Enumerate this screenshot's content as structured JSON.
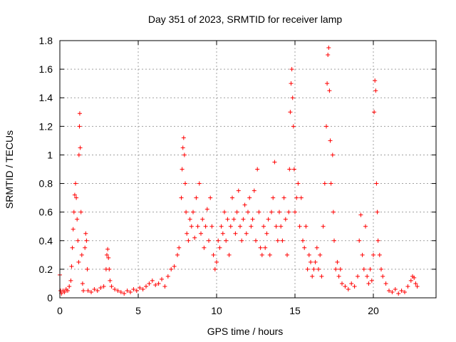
{
  "chart_data": {
    "type": "scatter",
    "title": "Day 351 of 2023, SRMTID for receiver lamp",
    "xlabel": "GPS time / hours",
    "ylabel": "SRMTID / TECUs",
    "xlim": [
      0,
      24
    ],
    "ylim": [
      0,
      1.8
    ],
    "xticks": [
      0,
      5,
      10,
      15,
      20
    ],
    "yticks": [
      0,
      0.2,
      0.4,
      0.6,
      0.8,
      1,
      1.2,
      1.4,
      1.6,
      1.8
    ],
    "ytick_labels": [
      "0",
      "0.2",
      "0.4",
      "0.6",
      "0.8",
      "1",
      "1.2",
      "1.4",
      "1.6",
      "1.8"
    ],
    "grid": true,
    "marker": "+",
    "color": "#ff0000",
    "series": [
      {
        "name": "SRMTID",
        "points": [
          [
            0.0,
            0.16
          ],
          [
            0.05,
            0.05
          ],
          [
            0.1,
            0.03
          ],
          [
            0.2,
            0.05
          ],
          [
            0.3,
            0.04
          ],
          [
            0.4,
            0.06
          ],
          [
            0.5,
            0.05
          ],
          [
            0.6,
            0.08
          ],
          [
            0.7,
            0.12
          ],
          [
            0.75,
            0.22
          ],
          [
            0.8,
            0.35
          ],
          [
            0.85,
            0.48
          ],
          [
            0.9,
            0.6
          ],
          [
            0.95,
            0.72
          ],
          [
            1.0,
            0.8
          ],
          [
            1.05,
            0.7
          ],
          [
            1.1,
            0.55
          ],
          [
            1.15,
            0.4
          ],
          [
            1.2,
            0.25
          ],
          [
            1.22,
            1.0
          ],
          [
            1.25,
            1.2
          ],
          [
            1.27,
            1.29
          ],
          [
            1.3,
            1.05
          ],
          [
            1.35,
            0.6
          ],
          [
            1.4,
            0.3
          ],
          [
            1.45,
            0.1
          ],
          [
            1.5,
            0.05
          ],
          [
            1.6,
            0.35
          ],
          [
            1.65,
            0.45
          ],
          [
            1.7,
            0.4
          ],
          [
            1.75,
            0.2
          ],
          [
            1.8,
            0.05
          ],
          [
            2.0,
            0.04
          ],
          [
            2.2,
            0.06
          ],
          [
            2.4,
            0.05
          ],
          [
            2.6,
            0.07
          ],
          [
            2.8,
            0.08
          ],
          [
            2.95,
            0.2
          ],
          [
            3.0,
            0.3
          ],
          [
            3.05,
            0.34
          ],
          [
            3.1,
            0.28
          ],
          [
            3.15,
            0.2
          ],
          [
            3.2,
            0.12
          ],
          [
            3.3,
            0.08
          ],
          [
            3.5,
            0.06
          ],
          [
            3.7,
            0.05
          ],
          [
            3.9,
            0.04
          ],
          [
            4.1,
            0.03
          ],
          [
            4.3,
            0.05
          ],
          [
            4.5,
            0.04
          ],
          [
            4.7,
            0.06
          ],
          [
            4.9,
            0.05
          ],
          [
            5.1,
            0.07
          ],
          [
            5.3,
            0.06
          ],
          [
            5.5,
            0.08
          ],
          [
            5.7,
            0.1
          ],
          [
            5.9,
            0.12
          ],
          [
            6.1,
            0.09
          ],
          [
            6.3,
            0.1
          ],
          [
            6.5,
            0.13
          ],
          [
            6.7,
            0.08
          ],
          [
            6.9,
            0.15
          ],
          [
            7.1,
            0.2
          ],
          [
            7.3,
            0.22
          ],
          [
            7.5,
            0.3
          ],
          [
            7.6,
            0.35
          ],
          [
            7.75,
            0.7
          ],
          [
            7.8,
            0.9
          ],
          [
            7.85,
            1.05
          ],
          [
            7.9,
            1.12
          ],
          [
            7.95,
            1.0
          ],
          [
            8.0,
            0.8
          ],
          [
            8.05,
            0.6
          ],
          [
            8.1,
            0.45
          ],
          [
            8.2,
            0.4
          ],
          [
            8.3,
            0.55
          ],
          [
            8.4,
            0.5
          ],
          [
            8.5,
            0.6
          ],
          [
            8.6,
            0.42
          ],
          [
            8.7,
            0.7
          ],
          [
            8.8,
            0.5
          ],
          [
            8.9,
            0.8
          ],
          [
            9.0,
            0.45
          ],
          [
            9.1,
            0.55
          ],
          [
            9.2,
            0.35
          ],
          [
            9.3,
            0.5
          ],
          [
            9.4,
            0.62
          ],
          [
            9.5,
            0.4
          ],
          [
            9.6,
            0.7
          ],
          [
            9.7,
            0.5
          ],
          [
            9.8,
            0.3
          ],
          [
            9.9,
            0.2
          ],
          [
            10.0,
            0.25
          ],
          [
            10.1,
            0.4
          ],
          [
            10.2,
            0.35
          ],
          [
            10.3,
            0.5
          ],
          [
            10.4,
            0.45
          ],
          [
            10.5,
            0.6
          ],
          [
            10.6,
            0.4
          ],
          [
            10.7,
            0.55
          ],
          [
            10.8,
            0.3
          ],
          [
            10.9,
            0.5
          ],
          [
            11.0,
            0.7
          ],
          [
            11.1,
            0.55
          ],
          [
            11.2,
            0.45
          ],
          [
            11.3,
            0.6
          ],
          [
            11.4,
            0.75
          ],
          [
            11.5,
            0.5
          ],
          [
            11.6,
            0.4
          ],
          [
            11.7,
            0.55
          ],
          [
            11.8,
            0.65
          ],
          [
            11.9,
            0.45
          ],
          [
            12.0,
            0.6
          ],
          [
            12.1,
            0.7
          ],
          [
            12.2,
            0.5
          ],
          [
            12.3,
            0.55
          ],
          [
            12.4,
            0.75
          ],
          [
            12.5,
            0.4
          ],
          [
            12.6,
            0.9
          ],
          [
            12.7,
            0.6
          ],
          [
            12.8,
            0.35
          ],
          [
            12.9,
            0.3
          ],
          [
            13.0,
            0.5
          ],
          [
            13.1,
            0.35
          ],
          [
            13.2,
            0.45
          ],
          [
            13.3,
            0.55
          ],
          [
            13.4,
            0.3
          ],
          [
            13.5,
            0.6
          ],
          [
            13.6,
            0.7
          ],
          [
            13.7,
            0.95
          ],
          [
            13.8,
            0.5
          ],
          [
            13.9,
            0.4
          ],
          [
            14.0,
            0.6
          ],
          [
            14.1,
            0.5
          ],
          [
            14.2,
            0.4
          ],
          [
            14.3,
            0.7
          ],
          [
            14.4,
            0.55
          ],
          [
            14.5,
            0.3
          ],
          [
            14.6,
            0.6
          ],
          [
            14.65,
            0.9
          ],
          [
            14.7,
            1.3
          ],
          [
            14.75,
            1.5
          ],
          [
            14.8,
            1.6
          ],
          [
            14.85,
            1.4
          ],
          [
            14.9,
            1.2
          ],
          [
            14.95,
            0.9
          ],
          [
            15.0,
            0.6
          ],
          [
            15.1,
            0.7
          ],
          [
            15.2,
            0.8
          ],
          [
            15.3,
            0.5
          ],
          [
            15.4,
            0.7
          ],
          [
            15.5,
            0.4
          ],
          [
            15.6,
            0.35
          ],
          [
            15.7,
            0.5
          ],
          [
            15.8,
            0.2
          ],
          [
            15.9,
            0.3
          ],
          [
            16.0,
            0.25
          ],
          [
            16.1,
            0.15
          ],
          [
            16.2,
            0.2
          ],
          [
            16.3,
            0.25
          ],
          [
            16.4,
            0.35
          ],
          [
            16.5,
            0.2
          ],
          [
            16.6,
            0.3
          ],
          [
            16.7,
            0.15
          ],
          [
            16.8,
            0.5
          ],
          [
            16.9,
            0.8
          ],
          [
            17.0,
            1.2
          ],
          [
            17.05,
            1.5
          ],
          [
            17.1,
            1.7
          ],
          [
            17.15,
            1.75
          ],
          [
            17.2,
            1.45
          ],
          [
            17.25,
            1.1
          ],
          [
            17.3,
            0.8
          ],
          [
            17.4,
            1.0
          ],
          [
            17.45,
            0.6
          ],
          [
            17.5,
            0.4
          ],
          [
            17.6,
            0.2
          ],
          [
            17.7,
            0.25
          ],
          [
            17.8,
            0.15
          ],
          [
            17.9,
            0.2
          ],
          [
            18.0,
            0.1
          ],
          [
            18.2,
            0.08
          ],
          [
            18.4,
            0.06
          ],
          [
            18.6,
            0.1
          ],
          [
            18.8,
            0.08
          ],
          [
            19.0,
            0.15
          ],
          [
            19.1,
            0.4
          ],
          [
            19.2,
            0.58
          ],
          [
            19.3,
            0.3
          ],
          [
            19.4,
            0.2
          ],
          [
            19.5,
            0.5
          ],
          [
            19.6,
            0.15
          ],
          [
            19.7,
            0.1
          ],
          [
            19.8,
            0.2
          ],
          [
            19.9,
            0.12
          ],
          [
            20.0,
            0.3
          ],
          [
            20.05,
            1.3
          ],
          [
            20.1,
            1.52
          ],
          [
            20.15,
            1.45
          ],
          [
            20.2,
            0.8
          ],
          [
            20.25,
            0.6
          ],
          [
            20.3,
            0.4
          ],
          [
            20.4,
            0.3
          ],
          [
            20.5,
            0.2
          ],
          [
            20.6,
            0.15
          ],
          [
            20.8,
            0.1
          ],
          [
            21.0,
            0.05
          ],
          [
            21.2,
            0.04
          ],
          [
            21.4,
            0.06
          ],
          [
            21.6,
            0.03
          ],
          [
            21.8,
            0.05
          ],
          [
            22.0,
            0.04
          ],
          [
            22.2,
            0.08
          ],
          [
            22.4,
            0.12
          ],
          [
            22.5,
            0.15
          ],
          [
            22.6,
            0.14
          ],
          [
            22.7,
            0.1
          ],
          [
            22.8,
            0.08
          ]
        ]
      }
    ]
  }
}
